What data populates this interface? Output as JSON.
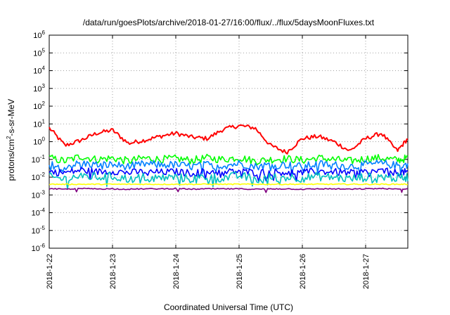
{
  "chart_data": {
    "type": "line",
    "title": "/data/run/goesPlots/archive/2018-01-27/16:00/flux/../flux/5daysMoonFluxes.txt",
    "xlabel": "Coordinated Universal Time (UTC)",
    "ylabel": {
      "pre": "protons/cm",
      "sup": "2",
      "post": "-s-sr-MeV"
    },
    "y_scale": "log",
    "ylim": [
      1e-06,
      1000000.0
    ],
    "y_ticks": [
      {
        "exp": "-6",
        "value": 1e-06
      },
      {
        "exp": "-5",
        "value": 1e-05
      },
      {
        "exp": "-4",
        "value": 0.0001
      },
      {
        "exp": "-3",
        "value": 0.001
      },
      {
        "exp": "-2",
        "value": 0.01
      },
      {
        "exp": "-1",
        "value": 0.1
      },
      {
        "exp": "0",
        "value": 1
      },
      {
        "exp": "1",
        "value": 10
      },
      {
        "exp": "2",
        "value": 100
      },
      {
        "exp": "3",
        "value": 1000.0
      },
      {
        "exp": "4",
        "value": 10000.0
      },
      {
        "exp": "5",
        "value": 100000.0
      },
      {
        "exp": "6",
        "value": 1000000.0
      }
    ],
    "y_tick_base": "10",
    "x_range_days": [
      "2018-01-22T00:00",
      "2018-01-27T16:00"
    ],
    "x_ticks": [
      "2018-1-22",
      "2018-1-23",
      "2018-1-24",
      "2018-1-25",
      "2018-1-26",
      "2018-1-27"
    ],
    "grid": true,
    "x": [
      "01-22 00:00",
      "01-22 06:00",
      "01-22 12:00",
      "01-22 18:00",
      "01-23 00:00",
      "01-23 06:00",
      "01-23 12:00",
      "01-23 18:00",
      "01-24 00:00",
      "01-24 06:00",
      "01-24 12:00",
      "01-24 18:00",
      "01-25 00:00",
      "01-25 06:00",
      "01-25 12:00",
      "01-25 18:00",
      "01-26 00:00",
      "01-26 06:00",
      "01-26 12:00",
      "01-26 18:00",
      "01-27 00:00",
      "01-27 06:00",
      "01-27 12:00",
      "01-27 16:00"
    ],
    "series": [
      {
        "color": "#ff0000",
        "values": [
          6,
          0.6,
          1.2,
          3,
          4.5,
          0.8,
          1.2,
          2,
          3,
          1.8,
          1.5,
          5,
          8,
          6,
          0.6,
          0.25,
          1.5,
          2,
          1,
          0.3,
          1.5,
          3,
          0.3,
          1.5
        ]
      },
      {
        "color": "#00ff00",
        "values": [
          0.12,
          0.08,
          0.15,
          0.1,
          0.12,
          0.08,
          0.12,
          0.1,
          0.11,
          0.09,
          0.12,
          0.1,
          0.13,
          0.08,
          0.1,
          0.11,
          0.09,
          0.12,
          0.1,
          0.08,
          0.11,
          0.12,
          0.09,
          0.12
        ]
      },
      {
        "color": "#0080ff",
        "values": [
          0.05,
          0.04,
          0.06,
          0.05,
          0.05,
          0.04,
          0.055,
          0.05,
          0.05,
          0.04,
          0.05,
          0.045,
          0.06,
          0.04,
          0.05,
          0.05,
          0.04,
          0.055,
          0.05,
          0.04,
          0.05,
          0.06,
          0.045,
          0.05
        ]
      },
      {
        "color": "#0000ff",
        "values": [
          0.02,
          0.018,
          0.025,
          0.02,
          0.022,
          0.018,
          0.02,
          0.019,
          0.02,
          0.017,
          0.021,
          0.019,
          0.022,
          0.018,
          0.02,
          0.019,
          0.018,
          0.021,
          0.02,
          0.017,
          0.02,
          0.022,
          0.018,
          0.02
        ]
      },
      {
        "color": "#00c0c0",
        "values": [
          0.01,
          0.008,
          0.012,
          0.01,
          0.011,
          0.008,
          0.01,
          0.009,
          0.01,
          0.008,
          0.011,
          0.009,
          0.012,
          0.008,
          0.01,
          0.01,
          0.009,
          0.011,
          0.01,
          0.008,
          0.01,
          0.011,
          0.009,
          0.01
        ]
      },
      {
        "color": "#ffff00",
        "values": [
          0.004,
          0.004,
          0.004,
          0.004,
          0.004,
          0.004,
          0.004,
          0.004,
          0.004,
          0.004,
          0.004,
          0.004,
          0.004,
          0.004,
          0.004,
          0.004,
          0.004,
          0.004,
          0.004,
          0.004,
          0.004,
          0.004,
          0.004,
          0.004
        ]
      },
      {
        "color": "#800080",
        "values": [
          0.0022,
          0.0021,
          0.0023,
          0.0022,
          0.0022,
          0.0021,
          0.0022,
          0.0022,
          0.0023,
          0.0021,
          0.0022,
          0.0022,
          0.0022,
          0.0021,
          0.0022,
          0.0022,
          0.0021,
          0.0022,
          0.0022,
          0.0021,
          0.0022,
          0.0023,
          0.0021,
          0.0022
        ]
      }
    ]
  }
}
